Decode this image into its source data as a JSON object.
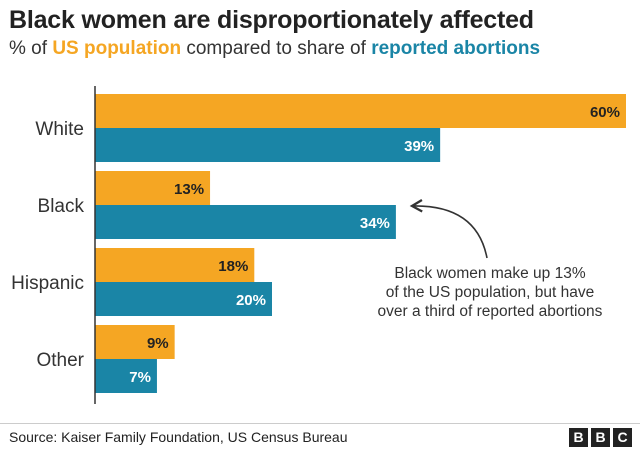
{
  "title": "Black women are disproportionately affected",
  "subtitle": {
    "prefix": "% of ",
    "key1": "US population",
    "middle": " compared to share of ",
    "key2": "reported abortions"
  },
  "chart_data": {
    "type": "bar",
    "orientation": "horizontal",
    "title": "Black women are disproportionately affected",
    "subtitle": "% of US population compared to share of reported abortions",
    "categories": [
      "White",
      "Black",
      "Hispanic",
      "Other"
    ],
    "series": [
      {
        "name": "US population",
        "values": [
          60,
          13,
          18,
          9
        ],
        "labels": [
          "60%",
          "13%",
          "18%",
          "9%"
        ],
        "color": "#f5a623",
        "label_color": "#222222"
      },
      {
        "name": "reported abortions",
        "values": [
          39,
          34,
          20,
          7
        ],
        "labels": [
          "39%",
          "34%",
          "20%",
          "7%"
        ],
        "color": "#1a85a6",
        "label_color": "#ffffff"
      }
    ],
    "xlim": [
      0,
      60
    ],
    "grid": false,
    "legend": "in subtitle"
  },
  "annotation": {
    "lines": [
      "Black women make up 13%",
      "of the US population, but have",
      "over a third of reported abortions"
    ]
  },
  "source": "Source: Kaiser Family Foundation, US Census Bureau",
  "brand": [
    "B",
    "B",
    "C"
  ],
  "colors": {
    "population": "#f5a623",
    "abortions": "#1a85a6",
    "axis": "#333333"
  }
}
